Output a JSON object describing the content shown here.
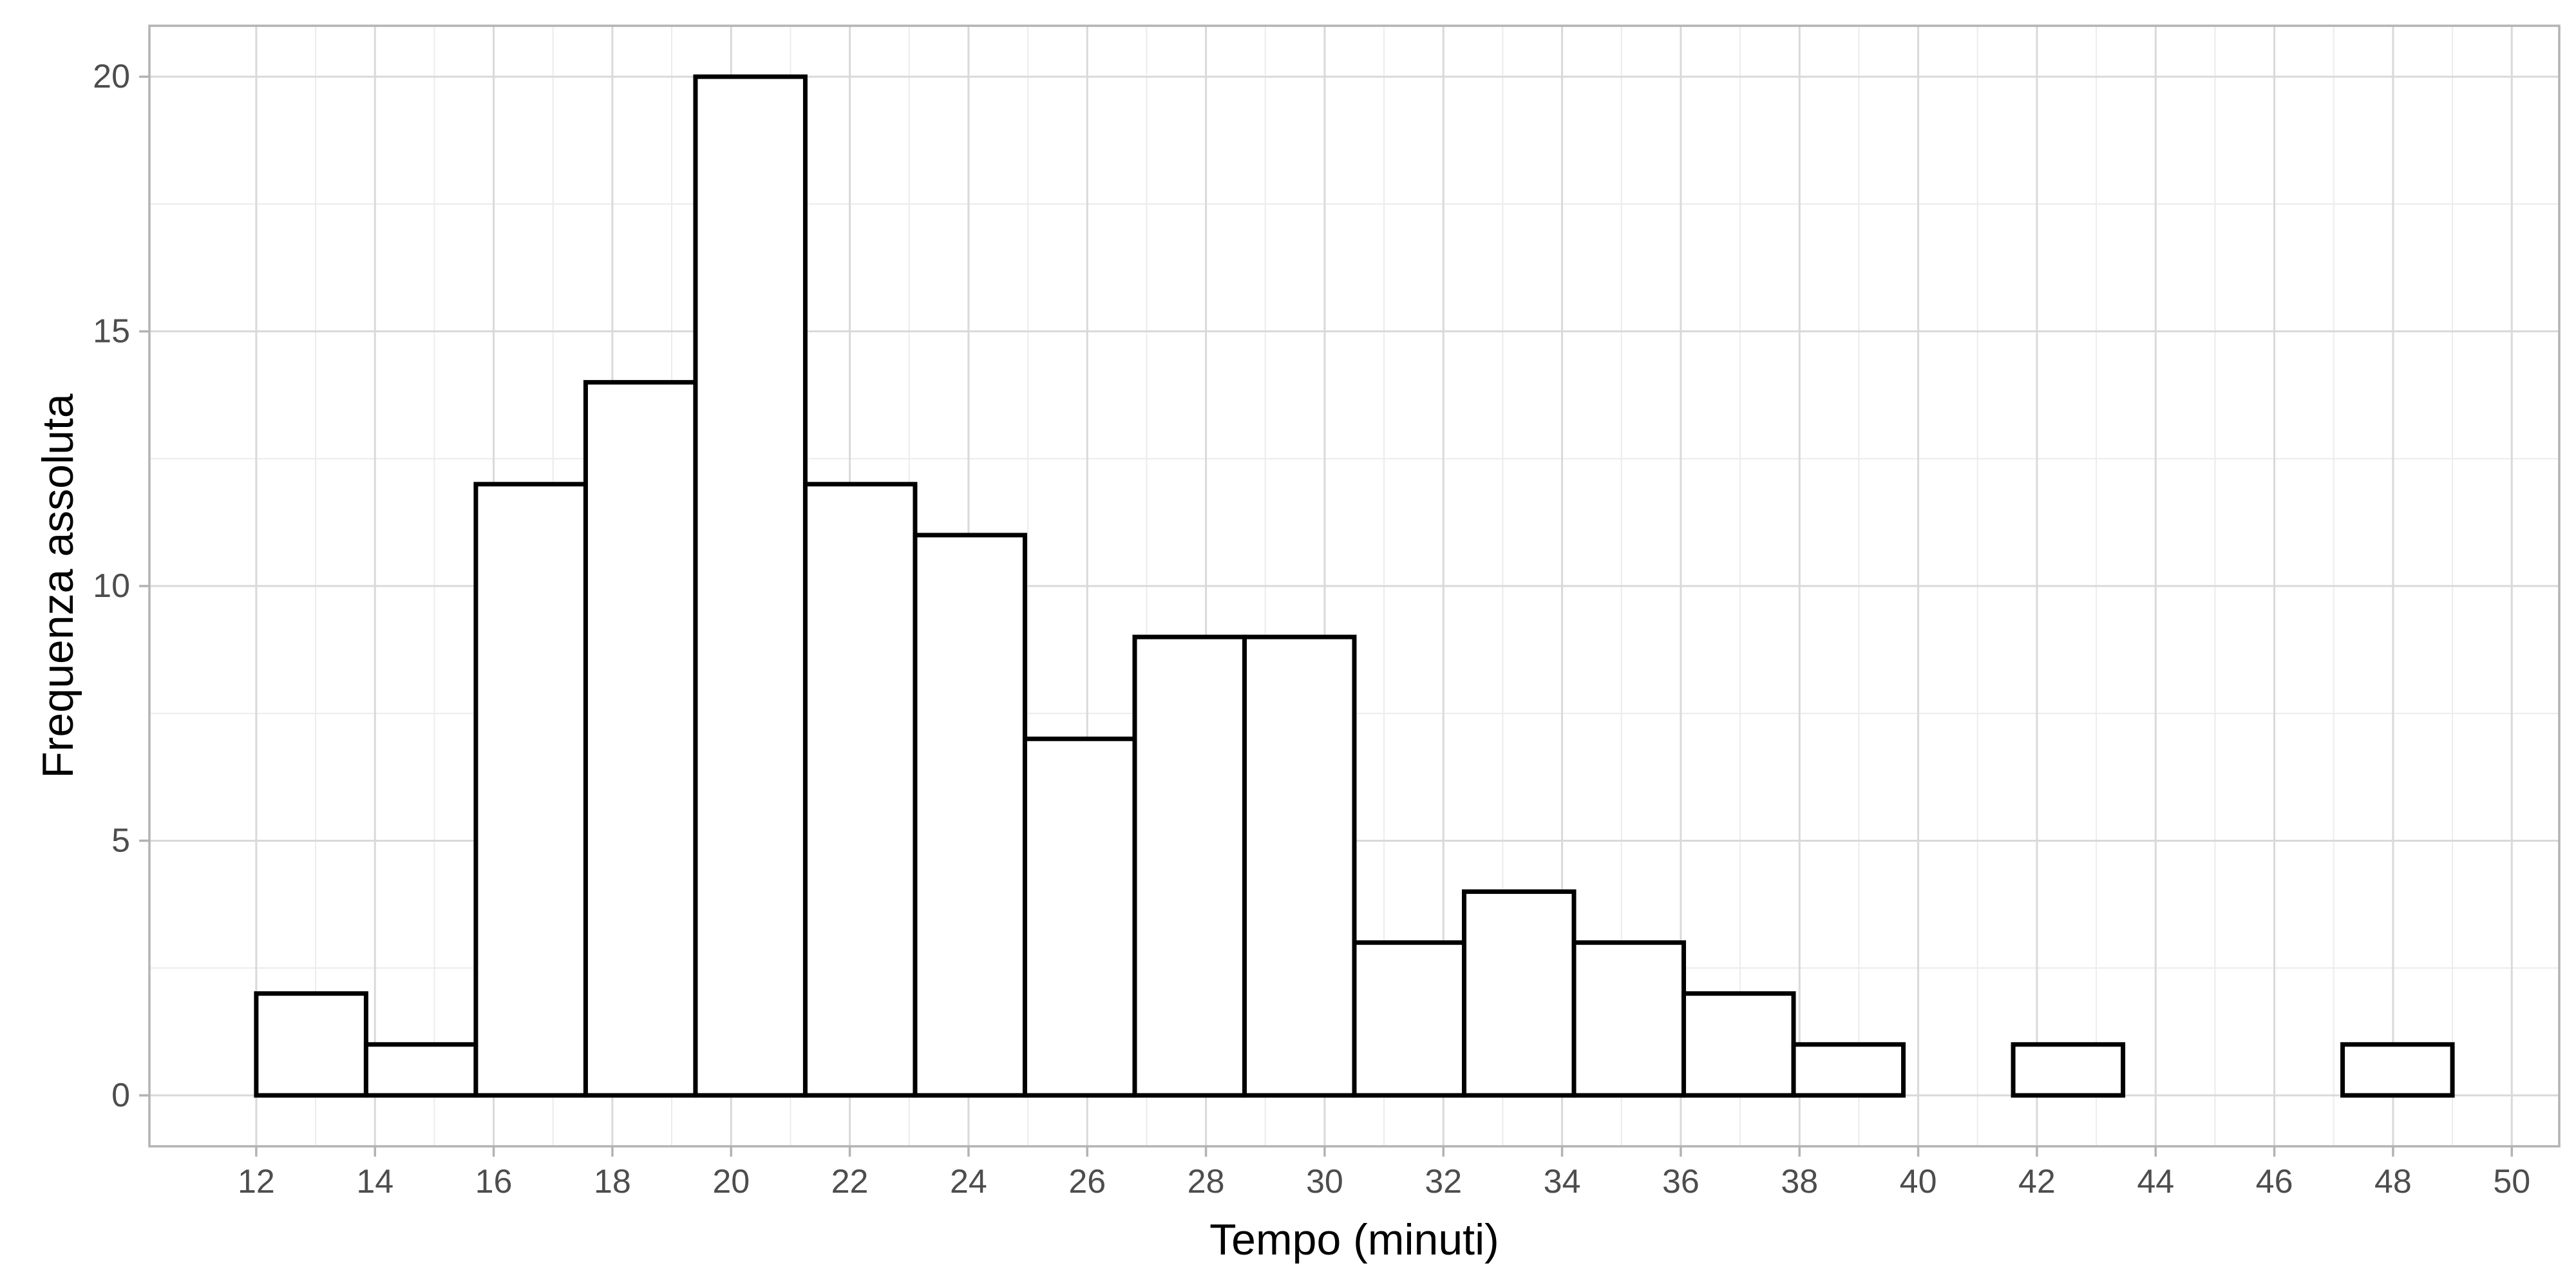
{
  "chart_data": {
    "type": "bar",
    "subtype": "histogram",
    "xlabel": "Tempo (minuti)",
    "ylabel": "Frequenza assoluta",
    "bin_edges": [
      12.0,
      13.85,
      15.7,
      17.55,
      19.4,
      21.25,
      23.1,
      24.95,
      26.8,
      28.65,
      30.5,
      32.35,
      34.2,
      36.05,
      37.9,
      39.75,
      41.6,
      43.45,
      45.3,
      47.15,
      49.0
    ],
    "values": [
      2,
      1,
      12,
      14,
      20,
      12,
      11,
      7,
      9,
      9,
      3,
      4,
      3,
      2,
      1,
      0,
      1,
      0,
      0,
      1
    ],
    "xlim": [
      10.2,
      50.8
    ],
    "ylim": [
      -1,
      21
    ],
    "x_ticks": [
      12,
      14,
      16,
      18,
      20,
      22,
      24,
      26,
      28,
      30,
      32,
      34,
      36,
      38,
      40,
      42,
      44,
      46,
      48,
      50
    ],
    "x_tick_labels": [
      "12",
      "14",
      "16",
      "18",
      "20",
      "22",
      "24",
      "26",
      "28",
      "30",
      "32",
      "34",
      "36",
      "38",
      "40",
      "42",
      "44",
      "46",
      "48",
      "50"
    ],
    "y_ticks": [
      0,
      5,
      10,
      15,
      20
    ],
    "y_tick_labels": [
      "0",
      "5",
      "10",
      "15",
      "20"
    ],
    "grid": true,
    "bar_fill": "#ffffff",
    "bar_outline": "#000000",
    "legend": "none"
  }
}
